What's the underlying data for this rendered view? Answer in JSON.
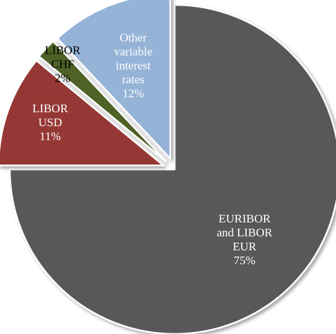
{
  "chart_data": {
    "type": "pie",
    "title": "",
    "slices": [
      {
        "label_lines": [
          "EURIBOR",
          "and LIBOR",
          "EUR"
        ],
        "percent_label": "75%",
        "value": 75,
        "color": "#595959",
        "text_color": "#ffffff",
        "exploded": false
      },
      {
        "label_lines": [
          "LIBOR",
          "USD"
        ],
        "percent_label": "11%",
        "value": 11,
        "color": "#953735",
        "text_color": "#ffffff",
        "exploded": true
      },
      {
        "label_lines": [
          "LIBOR",
          "CHF"
        ],
        "percent_label": "2%",
        "value": 2,
        "color": "#4f6228",
        "text_color": "#000000",
        "exploded": true
      },
      {
        "label_lines": [
          "Other",
          "variable",
          "interest",
          "rates"
        ],
        "percent_label": "12%",
        "value": 12,
        "color": "#95b3d7",
        "text_color": "#ffffff",
        "exploded": true
      }
    ]
  }
}
